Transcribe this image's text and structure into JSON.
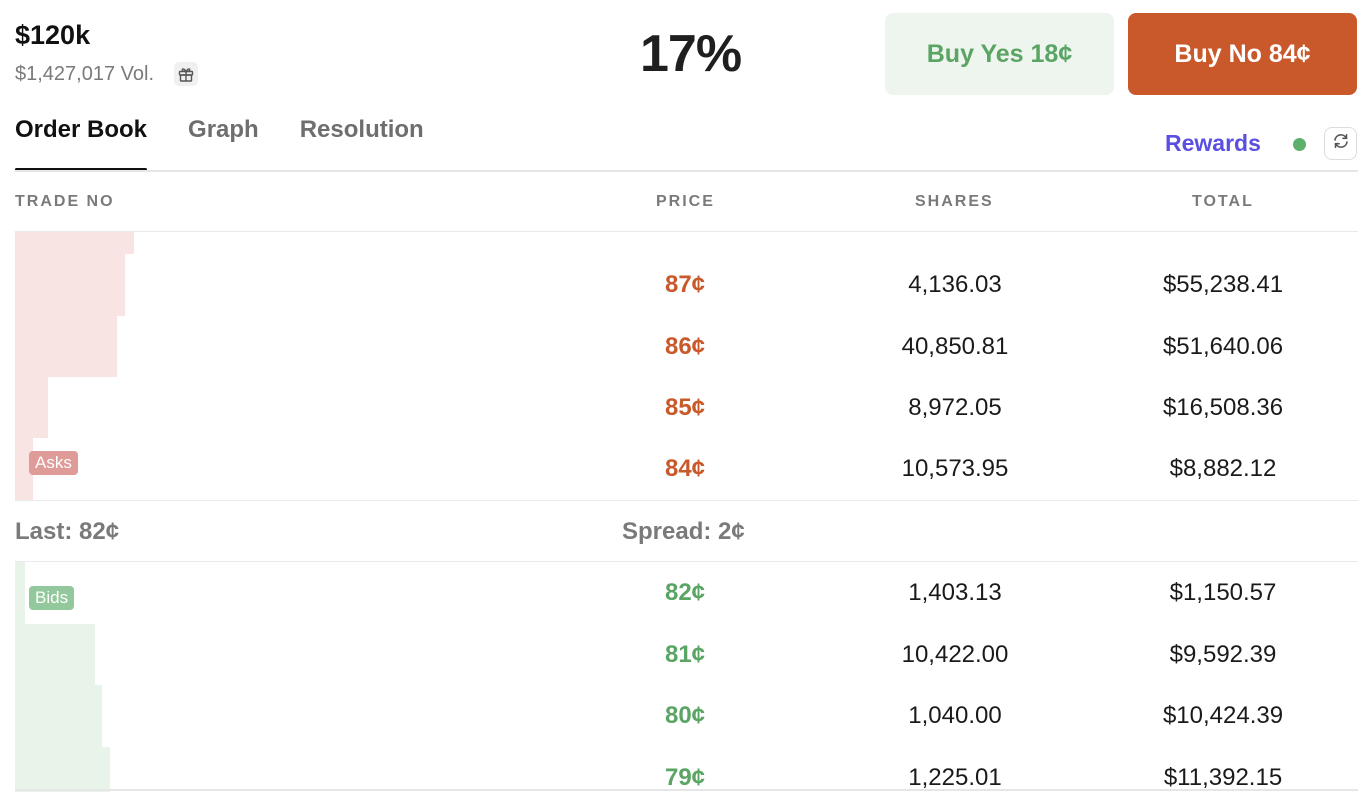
{
  "market": {
    "title": "$120k",
    "volume": "$1,427,017 Vol.",
    "probability": "17%"
  },
  "buttons": {
    "buy_yes": "Buy Yes 18¢",
    "buy_no": "Buy No 84¢"
  },
  "tabs": [
    {
      "label": "Order Book",
      "active": true
    },
    {
      "label": "Graph",
      "active": false
    },
    {
      "label": "Resolution",
      "active": false
    }
  ],
  "rewards": {
    "label": "Rewards"
  },
  "columns": {
    "side": "TRADE NO",
    "price": "PRICE",
    "shares": "SHARES",
    "total": "TOTAL"
  },
  "asks": {
    "badge": "Asks",
    "rows": [
      {
        "price": "87¢",
        "shares": "4,136.03",
        "total": "$55,238.41"
      },
      {
        "price": "86¢",
        "shares": "40,850.81",
        "total": "$51,640.06"
      },
      {
        "price": "85¢",
        "shares": "8,972.05",
        "total": "$16,508.36"
      },
      {
        "price": "84¢",
        "shares": "10,573.95",
        "total": "$8,882.12"
      }
    ]
  },
  "summary": {
    "last": "Last: 82¢",
    "spread": "Spread: 2¢"
  },
  "bids": {
    "badge": "Bids",
    "rows": [
      {
        "price": "82¢",
        "shares": "1,403.13",
        "total": "$1,150.57"
      },
      {
        "price": "81¢",
        "shares": "10,422.00",
        "total": "$9,592.39"
      },
      {
        "price": "80¢",
        "shares": "1,040.00",
        "total": "$10,424.39"
      },
      {
        "price": "79¢",
        "shares": "1,225.01",
        "total": "$11,392.15"
      }
    ]
  },
  "colors": {
    "ask_price": "#c9592a",
    "bid_price": "#5aa464",
    "ask_depth": "#f7e4e3",
    "bid_depth": "#e8f3ea",
    "rewards": "#5a4fe0",
    "status_dot": "#5cb06c"
  },
  "icons": {
    "gift": "gift-icon",
    "refresh": "refresh-icon"
  }
}
